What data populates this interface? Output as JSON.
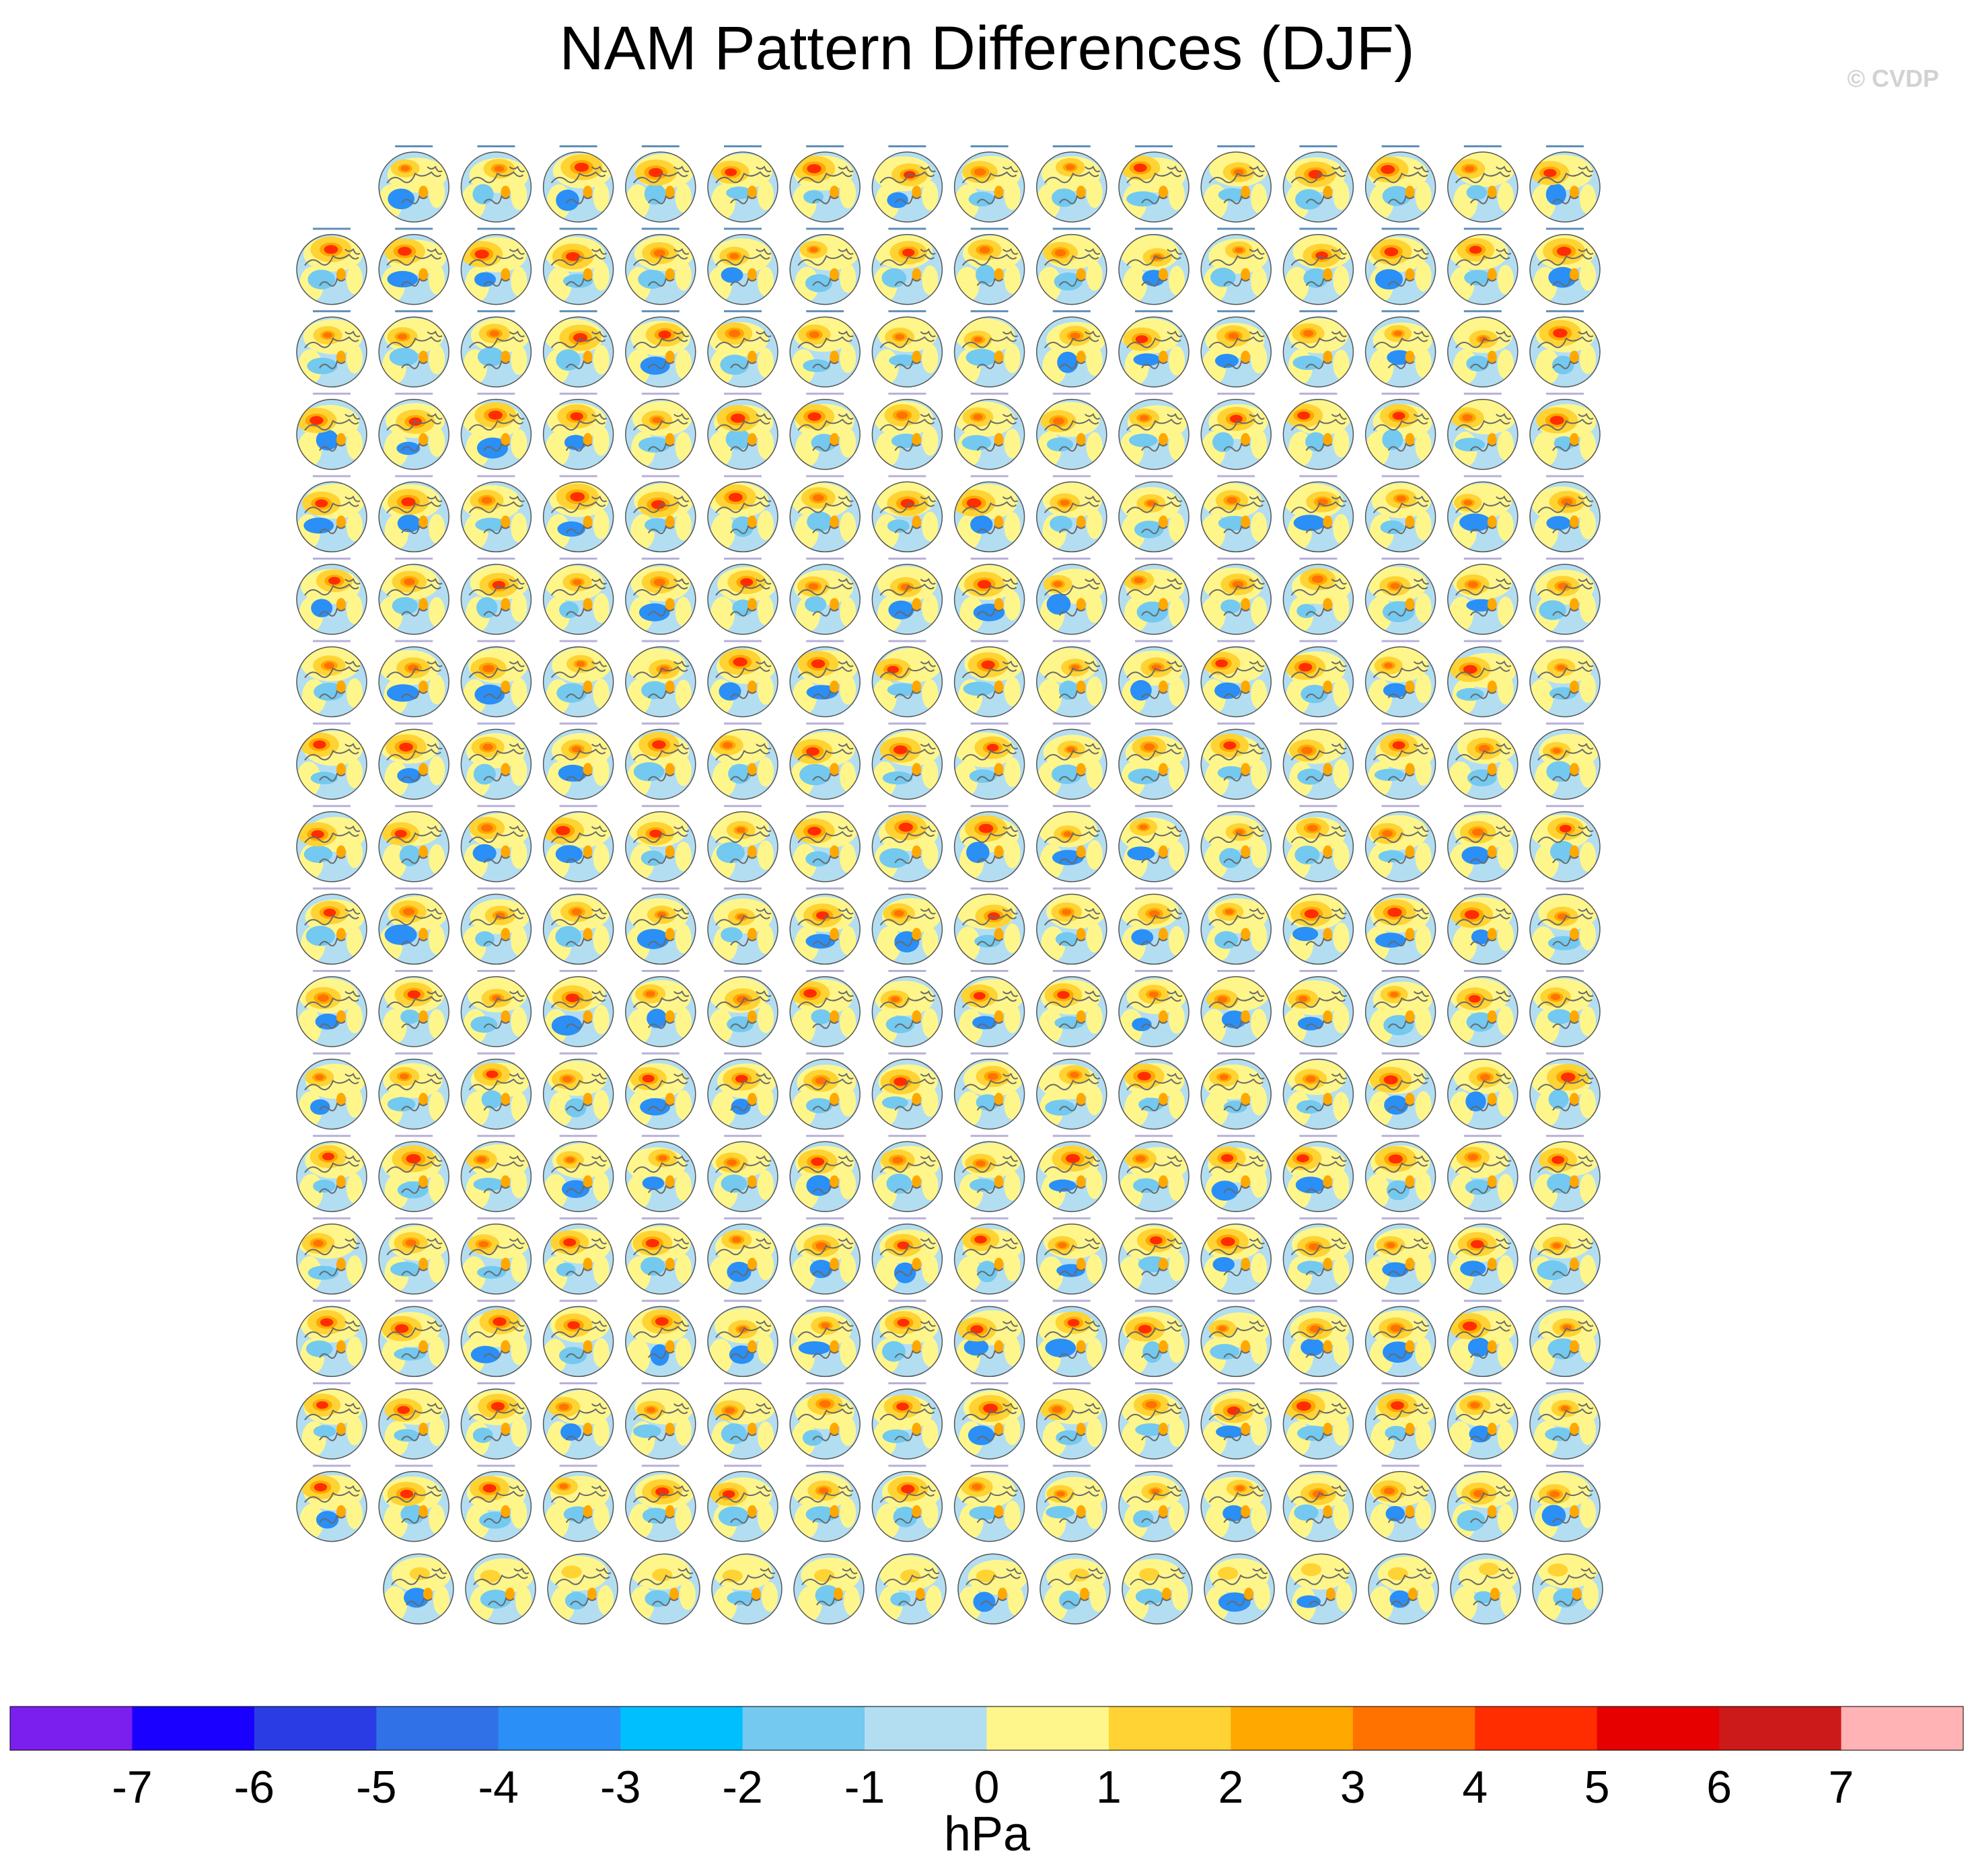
{
  "title": "NAM Pattern Differences (DJF)",
  "watermark": "© CVDP",
  "colorbar": {
    "units": "hPa",
    "ticks": [
      "-7",
      "-6",
      "-5",
      "-4",
      "-3",
      "-2",
      "-1",
      "0",
      "1",
      "2",
      "3",
      "4",
      "5",
      "6",
      "7"
    ],
    "colors": [
      "#7b1fee",
      "#1a00ff",
      "#2a3de5",
      "#3171e8",
      "#2a8ff6",
      "#00bfff",
      "#73c9f0",
      "#b3def2",
      "#fff68b",
      "#ffd333",
      "#ffa800",
      "#ff7200",
      "#ff2d00",
      "#e60000",
      "#cc1a1a",
      "#ffb3b5"
    ]
  },
  "chart_data": {
    "type": "heatmap",
    "title": "NAM Pattern Differences (DJF)",
    "description_layout": "grid of small polar-stereographic map panels",
    "rows": [
      15,
      16,
      16,
      16,
      16,
      16,
      16,
      16,
      16,
      16,
      16,
      16,
      16,
      16,
      16,
      16,
      16,
      15
    ],
    "total_panels": 286,
    "colorbar_range": [
      -7,
      7
    ],
    "colorbar_units": "hPa",
    "colorbar_ticks": [
      -7,
      -6,
      -5,
      -4,
      -3,
      -2,
      -1,
      0,
      1,
      2,
      3,
      4,
      5,
      6,
      7
    ],
    "colorbar_colors": [
      "#7b1fee",
      "#1a00ff",
      "#2a3de5",
      "#3171e8",
      "#2a8ff6",
      "#00bfff",
      "#73c9f0",
      "#b3def2",
      "#fff68b",
      "#ffd333",
      "#ffa800",
      "#ff7200",
      "#ff2d00",
      "#e60000",
      "#cc1a1a",
      "#ffb3b5"
    ]
  }
}
